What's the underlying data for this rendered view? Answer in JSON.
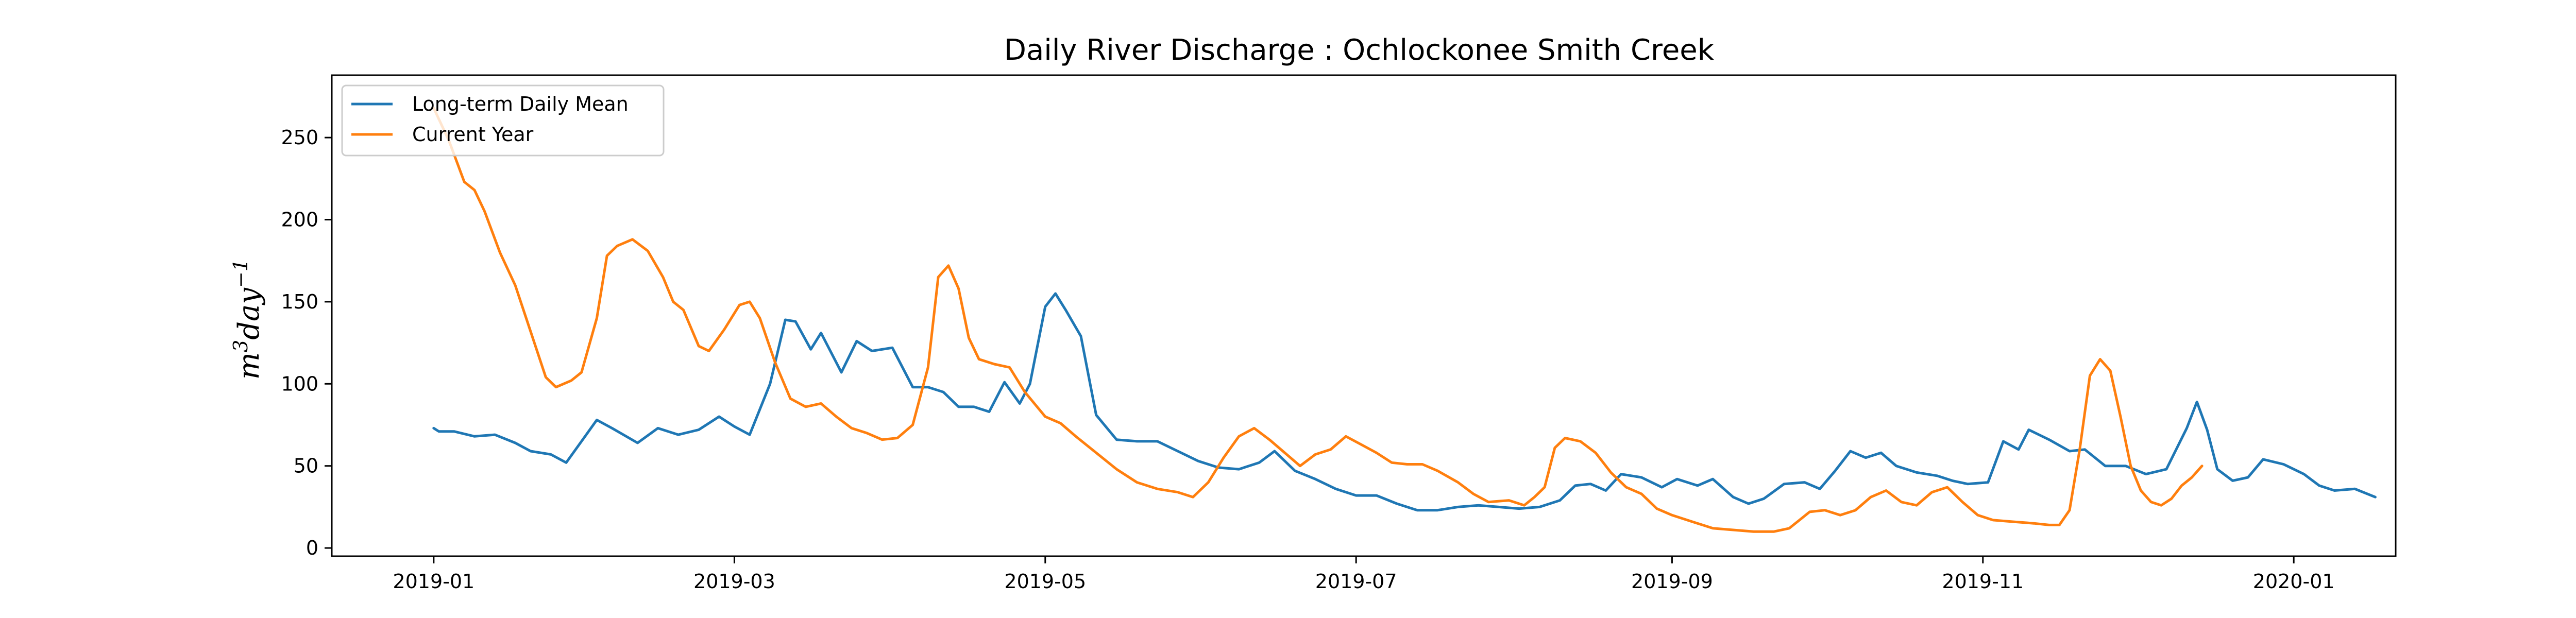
{
  "chart_data": {
    "type": "line",
    "title": "Daily River Discharge : Ochlockonee Smith Creek",
    "xlabel": "",
    "ylabel": "m³day⁻¹",
    "ylabel_parts": {
      "base": "m",
      "exp1": "3",
      "mid": "day",
      "exp2": "−1"
    },
    "x_axis": {
      "type": "date",
      "range": [
        "2018-12-12",
        "2020-01-21"
      ],
      "ticks": [
        "2019-01",
        "2019-03",
        "2019-05",
        "2019-07",
        "2019-09",
        "2019-11",
        "2020-01"
      ]
    },
    "y_axis": {
      "range": [
        -5,
        288
      ],
      "ticks": [
        0,
        50,
        100,
        150,
        200,
        250
      ]
    },
    "grid": false,
    "legend": {
      "position": "top-left",
      "entries": [
        "Long-term Daily Mean",
        "Current Year"
      ]
    },
    "series": [
      {
        "name": "Long-term Daily Mean",
        "color": "#1f77b4",
        "points": [
          [
            "2019-01-01",
            73
          ],
          [
            "2019-01-02",
            71
          ],
          [
            "2019-01-05",
            71
          ],
          [
            "2019-01-09",
            68
          ],
          [
            "2019-01-13",
            69
          ],
          [
            "2019-01-17",
            64
          ],
          [
            "2019-01-20",
            59
          ],
          [
            "2019-01-24",
            57
          ],
          [
            "2019-01-27",
            52
          ],
          [
            "2019-01-30",
            65
          ],
          [
            "2019-02-02",
            78
          ],
          [
            "2019-02-05",
            73
          ],
          [
            "2019-02-10",
            64
          ],
          [
            "2019-02-14",
            73
          ],
          [
            "2019-02-18",
            69
          ],
          [
            "2019-02-22",
            72
          ],
          [
            "2019-02-26",
            80
          ],
          [
            "2019-03-01",
            74
          ],
          [
            "2019-03-04",
            69
          ],
          [
            "2019-03-08",
            100
          ],
          [
            "2019-03-11",
            139
          ],
          [
            "2019-03-13",
            138
          ],
          [
            "2019-03-16",
            121
          ],
          [
            "2019-03-18",
            131
          ],
          [
            "2019-03-22",
            107
          ],
          [
            "2019-03-25",
            126
          ],
          [
            "2019-03-28",
            120
          ],
          [
            "2019-04-01",
            122
          ],
          [
            "2019-04-05",
            98
          ],
          [
            "2019-04-08",
            98
          ],
          [
            "2019-04-11",
            95
          ],
          [
            "2019-04-14",
            86
          ],
          [
            "2019-04-17",
            86
          ],
          [
            "2019-04-20",
            83
          ],
          [
            "2019-04-23",
            101
          ],
          [
            "2019-04-26",
            88
          ],
          [
            "2019-04-28",
            100
          ],
          [
            "2019-05-01",
            147
          ],
          [
            "2019-05-03",
            155
          ],
          [
            "2019-05-05",
            145
          ],
          [
            "2019-05-08",
            129
          ],
          [
            "2019-05-11",
            81
          ],
          [
            "2019-05-15",
            66
          ],
          [
            "2019-05-19",
            65
          ],
          [
            "2019-05-23",
            65
          ],
          [
            "2019-05-27",
            59
          ],
          [
            "2019-05-31",
            53
          ],
          [
            "2019-06-04",
            49
          ],
          [
            "2019-06-08",
            48
          ],
          [
            "2019-06-12",
            52
          ],
          [
            "2019-06-15",
            59
          ],
          [
            "2019-06-19",
            47
          ],
          [
            "2019-06-23",
            42
          ],
          [
            "2019-06-27",
            36
          ],
          [
            "2019-07-01",
            32
          ],
          [
            "2019-07-05",
            32
          ],
          [
            "2019-07-09",
            27
          ],
          [
            "2019-07-13",
            23
          ],
          [
            "2019-07-17",
            23
          ],
          [
            "2019-07-21",
            25
          ],
          [
            "2019-07-25",
            26
          ],
          [
            "2019-07-29",
            25
          ],
          [
            "2019-08-02",
            24
          ],
          [
            "2019-08-06",
            25
          ],
          [
            "2019-08-10",
            29
          ],
          [
            "2019-08-13",
            38
          ],
          [
            "2019-08-16",
            39
          ],
          [
            "2019-08-19",
            35
          ],
          [
            "2019-08-22",
            45
          ],
          [
            "2019-08-26",
            43
          ],
          [
            "2019-08-30",
            37
          ],
          [
            "2019-09-02",
            42
          ],
          [
            "2019-09-06",
            38
          ],
          [
            "2019-09-09",
            42
          ],
          [
            "2019-09-13",
            31
          ],
          [
            "2019-09-16",
            27
          ],
          [
            "2019-09-19",
            30
          ],
          [
            "2019-09-23",
            39
          ],
          [
            "2019-09-27",
            40
          ],
          [
            "2019-09-30",
            36
          ],
          [
            "2019-10-03",
            47
          ],
          [
            "2019-10-06",
            59
          ],
          [
            "2019-10-09",
            55
          ],
          [
            "2019-10-12",
            58
          ],
          [
            "2019-10-15",
            50
          ],
          [
            "2019-10-19",
            46
          ],
          [
            "2019-10-23",
            44
          ],
          [
            "2019-10-26",
            41
          ],
          [
            "2019-10-29",
            39
          ],
          [
            "2019-11-02",
            40
          ],
          [
            "2019-11-05",
            65
          ],
          [
            "2019-11-08",
            60
          ],
          [
            "2019-11-10",
            72
          ],
          [
            "2019-11-14",
            66
          ],
          [
            "2019-11-18",
            59
          ],
          [
            "2019-11-21",
            60
          ],
          [
            "2019-11-25",
            50
          ],
          [
            "2019-11-29",
            50
          ],
          [
            "2019-12-03",
            45
          ],
          [
            "2019-12-07",
            48
          ],
          [
            "2019-12-11",
            73
          ],
          [
            "2019-12-13",
            89
          ],
          [
            "2019-12-15",
            72
          ],
          [
            "2019-12-17",
            48
          ],
          [
            "2019-12-20",
            41
          ],
          [
            "2019-12-23",
            43
          ],
          [
            "2019-12-26",
            54
          ],
          [
            "2019-12-30",
            51
          ],
          [
            "2020-01-03",
            45
          ],
          [
            "2020-01-06",
            38
          ],
          [
            "2020-01-09",
            35
          ],
          [
            "2020-01-13",
            36
          ],
          [
            "2020-01-17",
            31
          ]
        ]
      },
      {
        "name": "Current Year",
        "color": "#ff7f0e",
        "points": [
          [
            "2019-01-01",
            268
          ],
          [
            "2019-01-04",
            248
          ],
          [
            "2019-01-07",
            223
          ],
          [
            "2019-01-09",
            218
          ],
          [
            "2019-01-11",
            205
          ],
          [
            "2019-01-14",
            180
          ],
          [
            "2019-01-17",
            160
          ],
          [
            "2019-01-20",
            132
          ],
          [
            "2019-01-23",
            104
          ],
          [
            "2019-01-25",
            98
          ],
          [
            "2019-01-28",
            102
          ],
          [
            "2019-01-30",
            107
          ],
          [
            "2019-02-02",
            140
          ],
          [
            "2019-02-04",
            178
          ],
          [
            "2019-02-06",
            184
          ],
          [
            "2019-02-09",
            188
          ],
          [
            "2019-02-12",
            181
          ],
          [
            "2019-02-15",
            165
          ],
          [
            "2019-02-17",
            150
          ],
          [
            "2019-02-19",
            145
          ],
          [
            "2019-02-22",
            123
          ],
          [
            "2019-02-24",
            120
          ],
          [
            "2019-02-27",
            133
          ],
          [
            "2019-03-02",
            148
          ],
          [
            "2019-03-04",
            150
          ],
          [
            "2019-03-06",
            140
          ],
          [
            "2019-03-09",
            113
          ],
          [
            "2019-03-12",
            91
          ],
          [
            "2019-03-15",
            86
          ],
          [
            "2019-03-18",
            88
          ],
          [
            "2019-03-21",
            80
          ],
          [
            "2019-03-24",
            73
          ],
          [
            "2019-03-27",
            70
          ],
          [
            "2019-03-30",
            66
          ],
          [
            "2019-04-02",
            67
          ],
          [
            "2019-04-05",
            75
          ],
          [
            "2019-04-08",
            110
          ],
          [
            "2019-04-10",
            165
          ],
          [
            "2019-04-12",
            172
          ],
          [
            "2019-04-14",
            158
          ],
          [
            "2019-04-16",
            128
          ],
          [
            "2019-04-18",
            115
          ],
          [
            "2019-04-21",
            112
          ],
          [
            "2019-04-24",
            110
          ],
          [
            "2019-04-27",
            95
          ],
          [
            "2019-05-01",
            80
          ],
          [
            "2019-05-04",
            76
          ],
          [
            "2019-05-07",
            68
          ],
          [
            "2019-05-11",
            58
          ],
          [
            "2019-05-15",
            48
          ],
          [
            "2019-05-19",
            40
          ],
          [
            "2019-05-23",
            36
          ],
          [
            "2019-05-27",
            34
          ],
          [
            "2019-05-30",
            31
          ],
          [
            "2019-06-02",
            40
          ],
          [
            "2019-06-05",
            55
          ],
          [
            "2019-06-08",
            68
          ],
          [
            "2019-06-11",
            73
          ],
          [
            "2019-06-14",
            66
          ],
          [
            "2019-06-17",
            58
          ],
          [
            "2019-06-20",
            50
          ],
          [
            "2019-06-23",
            57
          ],
          [
            "2019-06-26",
            60
          ],
          [
            "2019-06-29",
            68
          ],
          [
            "2019-07-02",
            63
          ],
          [
            "2019-07-05",
            58
          ],
          [
            "2019-07-08",
            52
          ],
          [
            "2019-07-11",
            51
          ],
          [
            "2019-07-14",
            51
          ],
          [
            "2019-07-17",
            47
          ],
          [
            "2019-07-21",
            40
          ],
          [
            "2019-07-24",
            33
          ],
          [
            "2019-07-27",
            28
          ],
          [
            "2019-07-31",
            29
          ],
          [
            "2019-08-03",
            26
          ],
          [
            "2019-08-05",
            31
          ],
          [
            "2019-08-07",
            37
          ],
          [
            "2019-08-09",
            61
          ],
          [
            "2019-08-11",
            67
          ],
          [
            "2019-08-14",
            65
          ],
          [
            "2019-08-17",
            58
          ],
          [
            "2019-08-20",
            46
          ],
          [
            "2019-08-23",
            37
          ],
          [
            "2019-08-26",
            33
          ],
          [
            "2019-08-29",
            24
          ],
          [
            "2019-09-01",
            20
          ],
          [
            "2019-09-05",
            16
          ],
          [
            "2019-09-09",
            12
          ],
          [
            "2019-09-13",
            11
          ],
          [
            "2019-09-17",
            10
          ],
          [
            "2019-09-21",
            10
          ],
          [
            "2019-09-24",
            12
          ],
          [
            "2019-09-26",
            17
          ],
          [
            "2019-09-28",
            22
          ],
          [
            "2019-10-01",
            23
          ],
          [
            "2019-10-04",
            20
          ],
          [
            "2019-10-07",
            23
          ],
          [
            "2019-10-10",
            31
          ],
          [
            "2019-10-13",
            35
          ],
          [
            "2019-10-16",
            28
          ],
          [
            "2019-10-19",
            26
          ],
          [
            "2019-10-22",
            34
          ],
          [
            "2019-10-25",
            37
          ],
          [
            "2019-10-28",
            28
          ],
          [
            "2019-10-31",
            20
          ],
          [
            "2019-11-03",
            17
          ],
          [
            "2019-11-07",
            16
          ],
          [
            "2019-11-11",
            15
          ],
          [
            "2019-11-14",
            14
          ],
          [
            "2019-11-16",
            14
          ],
          [
            "2019-11-18",
            23
          ],
          [
            "2019-11-20",
            60
          ],
          [
            "2019-11-22",
            105
          ],
          [
            "2019-11-24",
            115
          ],
          [
            "2019-11-26",
            108
          ],
          [
            "2019-11-28",
            80
          ],
          [
            "2019-11-30",
            50
          ],
          [
            "2019-12-02",
            35
          ],
          [
            "2019-12-04",
            28
          ],
          [
            "2019-12-06",
            26
          ],
          [
            "2019-12-08",
            30
          ],
          [
            "2019-12-10",
            38
          ],
          [
            "2019-12-12",
            43
          ],
          [
            "2019-12-14",
            50
          ]
        ]
      }
    ]
  }
}
